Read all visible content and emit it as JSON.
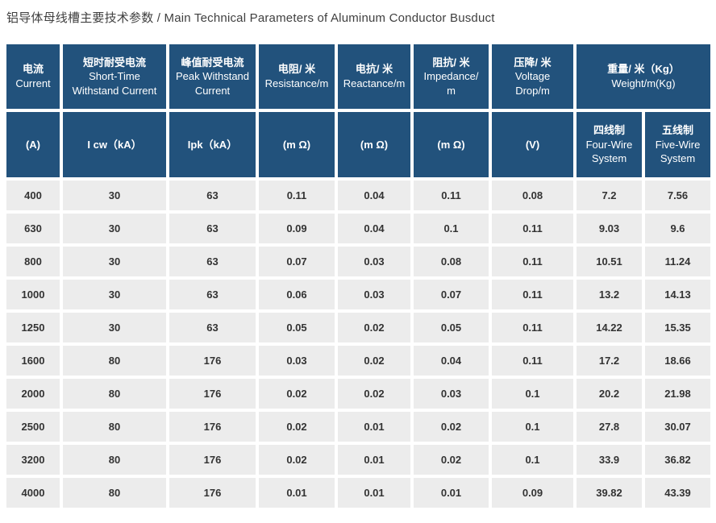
{
  "title": "铝导体母线槽主要技术参数 / Main Technical Parameters of Aluminum Conductor Busduct",
  "colors": {
    "header_bg": "#22527c",
    "header_text": "#ffffff",
    "row_bg": "#ececec",
    "body_text": "#333333",
    "title_text": "#3f3f3f",
    "page_bg": "#ffffff"
  },
  "table": {
    "header_row1": [
      {
        "line1": "电流",
        "line2": "Current"
      },
      {
        "line1": "短时耐受电流",
        "line2": "Short-Time\nWithstand Current"
      },
      {
        "line1": "峰值耐受电流",
        "line2": "Peak Withstand\nCurrent"
      },
      {
        "line1": "电阻/ 米",
        "line2": "Resistance/m"
      },
      {
        "line1": "电抗/ 米",
        "line2": "Reactance/m"
      },
      {
        "line1": "阻抗/ 米",
        "line2": "Impedance/\nm"
      },
      {
        "line1": "压降/ 米",
        "line2": "Voltage\nDrop/m"
      },
      {
        "line1": "重量/ 米（Kg）",
        "line2": "Weight/m(Kg)"
      }
    ],
    "header_row2": [
      {
        "line1": "(A)",
        "line2": ""
      },
      {
        "line1": "I cw（kA）",
        "line2": ""
      },
      {
        "line1": "Ipk（kA）",
        "line2": ""
      },
      {
        "line1": "(m Ω)",
        "line2": ""
      },
      {
        "line1": "(m Ω)",
        "line2": ""
      },
      {
        "line1": "(m Ω)",
        "line2": ""
      },
      {
        "line1": "(V)",
        "line2": ""
      },
      {
        "line1": "四线制",
        "line2": "Four-Wire\nSystem"
      },
      {
        "line1": "五线制",
        "line2": "Five-Wire\nSystem"
      }
    ],
    "rows": [
      [
        "400",
        "30",
        "63",
        "0.11",
        "0.04",
        "0.11",
        "0.08",
        "7.2",
        "7.56"
      ],
      [
        "630",
        "30",
        "63",
        "0.09",
        "0.04",
        "0.1",
        "0.11",
        "9.03",
        "9.6"
      ],
      [
        "800",
        "30",
        "63",
        "0.07",
        "0.03",
        "0.08",
        "0.11",
        "10.51",
        "11.24"
      ],
      [
        "1000",
        "30",
        "63",
        "0.06",
        "0.03",
        "0.07",
        "0.11",
        "13.2",
        "14.13"
      ],
      [
        "1250",
        "30",
        "63",
        "0.05",
        "0.02",
        "0.05",
        "0.11",
        "14.22",
        "15.35"
      ],
      [
        "1600",
        "80",
        "176",
        "0.03",
        "0.02",
        "0.04",
        "0.11",
        "17.2",
        "18.66"
      ],
      [
        "2000",
        "80",
        "176",
        "0.02",
        "0.02",
        "0.03",
        "0.1",
        "20.2",
        "21.98"
      ],
      [
        "2500",
        "80",
        "176",
        "0.02",
        "0.01",
        "0.02",
        "0.1",
        "27.8",
        "30.07"
      ],
      [
        "3200",
        "80",
        "176",
        "0.02",
        "0.01",
        "0.02",
        "0.1",
        "33.9",
        "36.82"
      ],
      [
        "4000",
        "80",
        "176",
        "0.01",
        "0.01",
        "0.01",
        "0.09",
        "39.82",
        "43.39"
      ]
    ]
  }
}
